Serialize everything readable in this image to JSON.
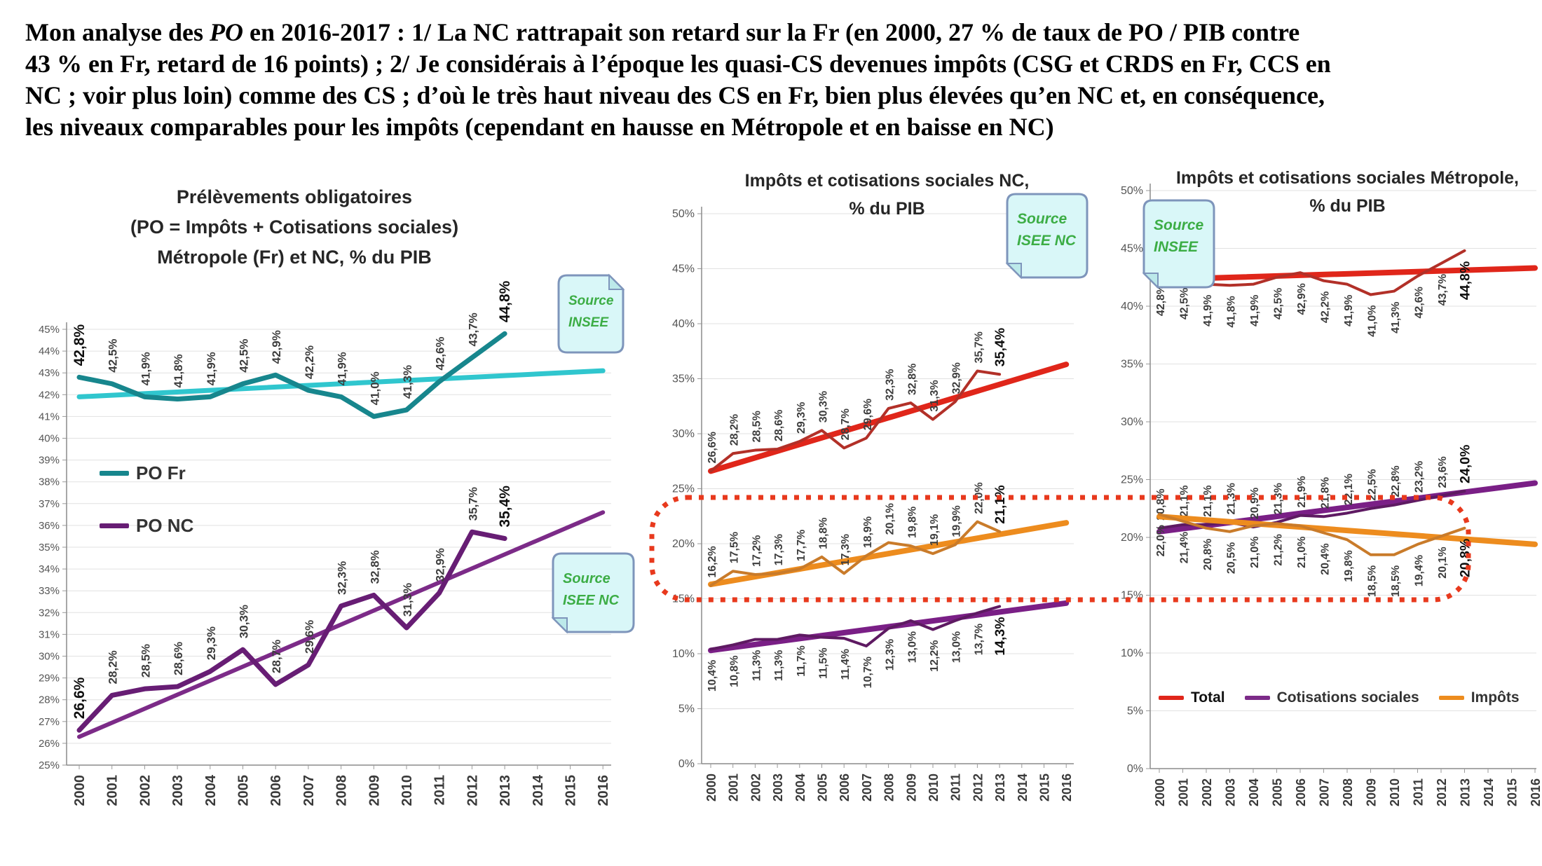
{
  "header": {
    "lines": [
      [
        {
          "t": "Mon analyse des "
        },
        {
          "t": "PO",
          "italic": true
        },
        {
          "t": " en 2016-2017 : 1/ La NC rattrapait son retard sur la Fr (en 2000, 27 % de taux de PO / PIB contre"
        }
      ],
      [
        {
          "t": "43 % en Fr, retard de 16 points) ; 2/ Je considérais à l’époque les quasi-CS devenues impôts (CSG et CRDS en Fr, CCS en"
        }
      ],
      [
        {
          "t": "NC ; voir plus loin) comme des CS ; d’où le très haut niveau des CS en Fr, bien plus élevées qu’en NC et, en conséquence,"
        }
      ],
      [
        {
          "t": "les niveaux comparables pour les impôts (cependant en hausse en Métropole et en baisse en NC)"
        }
      ]
    ]
  },
  "x_axis_years": [
    "2000",
    "2001",
    "2002",
    "2003",
    "2004",
    "2005",
    "2006",
    "2007",
    "2008",
    "2009",
    "2010",
    "2011",
    "2012",
    "2013",
    "2014",
    "2015",
    "2016"
  ],
  "chart_data": [
    {
      "id": "po-fr-nc",
      "type": "line",
      "title": [
        "Prélèvements obligatoires",
        "(PO = Impôts + Cotisations sociales)",
        "Métropole (Fr) et NC, % du PIB"
      ],
      "x": [
        2000,
        2001,
        2002,
        2003,
        2004,
        2005,
        2006,
        2007,
        2008,
        2009,
        2010,
        2011,
        2012,
        2013
      ],
      "ylim": [
        25,
        45
      ],
      "ytick_step": 1,
      "grid": true,
      "series": [
        {
          "name": "PO Fr",
          "slug": "po-fr",
          "color": "#17868D",
          "width": 7,
          "values": [
            42.8,
            42.5,
            41.9,
            41.8,
            41.9,
            42.5,
            42.9,
            42.2,
            41.9,
            41.0,
            41.3,
            42.6,
            43.7,
            44.8
          ],
          "trend": {
            "color": "#30C6CE",
            "width": 7,
            "start": 41.9,
            "end": 43.1
          },
          "label_side": "above",
          "bold_points": [
            0,
            13
          ]
        },
        {
          "name": "PO NC",
          "slug": "po-nc",
          "color": "#671D74",
          "width": 7,
          "values": [
            26.6,
            28.2,
            28.5,
            28.6,
            29.3,
            30.3,
            28.7,
            29.6,
            32.3,
            32.8,
            31.3,
            32.9,
            35.7,
            35.4
          ],
          "trend": {
            "color": "#7C2B88",
            "width": 6,
            "start": 26.3,
            "end": 36.6
          },
          "label_side": "above",
          "bold_points": [
            0,
            13
          ]
        }
      ],
      "legend": {
        "position": "inside-left",
        "items": [
          {
            "label": "PO Fr",
            "color": "#17868D"
          },
          {
            "label": "PO NC",
            "color": "#671D74"
          }
        ]
      },
      "sources": [
        [
          "Source",
          "INSEE"
        ],
        [
          "Source",
          "ISEE NC"
        ]
      ]
    },
    {
      "id": "ics-nc",
      "type": "line",
      "title": [
        "Impôts et cotisations sociales NC,",
        "% du PIB"
      ],
      "x": [
        2000,
        2001,
        2002,
        2003,
        2004,
        2005,
        2006,
        2007,
        2008,
        2009,
        2010,
        2011,
        2012,
        2013
      ],
      "ylim": [
        0,
        50
      ],
      "ytick_step": 5,
      "grid": true,
      "series": [
        {
          "name": "Total",
          "slug": "total-nc",
          "color": "#B23028",
          "width": 4,
          "values": [
            26.6,
            28.2,
            28.5,
            28.6,
            29.3,
            30.3,
            28.7,
            29.6,
            32.3,
            32.8,
            31.3,
            32.9,
            35.7,
            35.4
          ],
          "trend": {
            "color": "#E0261A",
            "width": 8,
            "start": 26.6,
            "end": 36.3
          },
          "label_side": "above",
          "bold_points": [
            13
          ]
        },
        {
          "name": "Impôts",
          "slug": "impots-nc",
          "color": "#C97B2A",
          "width": 4,
          "values": [
            16.2,
            17.5,
            17.2,
            17.3,
            17.7,
            18.8,
            17.3,
            18.9,
            20.1,
            19.8,
            19.1,
            19.9,
            22.0,
            21.1
          ],
          "trend": {
            "color": "#ED8C1E",
            "width": 8,
            "start": 16.3,
            "end": 21.9
          },
          "label_side": "above",
          "bold_points": [
            13
          ]
        },
        {
          "name": "Cotisations sociales",
          "slug": "cs-nc",
          "color": "#5E1A62",
          "width": 4,
          "values": [
            10.4,
            10.8,
            11.3,
            11.3,
            11.7,
            11.5,
            11.4,
            10.7,
            12.3,
            13.0,
            12.2,
            13.0,
            13.7,
            14.3
          ],
          "trend": {
            "color": "#7A1F86",
            "width": 8,
            "start": 10.3,
            "end": 14.6
          },
          "label_side": "below",
          "bold_points": [
            13
          ]
        }
      ],
      "legend": null,
      "sources": [
        [
          "Source",
          "ISEE NC"
        ]
      ]
    },
    {
      "id": "ics-fr",
      "type": "line",
      "title": [
        "Impôts et cotisations sociales Métropole,",
        "% du PIB"
      ],
      "x": [
        2000,
        2001,
        2002,
        2003,
        2004,
        2005,
        2006,
        2007,
        2008,
        2009,
        2010,
        2011,
        2012,
        2013
      ],
      "ylim": [
        0,
        50
      ],
      "ytick_step": 5,
      "grid": true,
      "series": [
        {
          "name": "Total",
          "slug": "total-fr",
          "color": "#B23028",
          "width": 4,
          "values": [
            42.8,
            42.5,
            41.9,
            41.8,
            41.9,
            42.5,
            42.9,
            42.2,
            41.9,
            41.0,
            41.3,
            42.6,
            43.7,
            44.8
          ],
          "trend": {
            "color": "#E0261A",
            "width": 8,
            "start": 42.3,
            "end": 43.3
          },
          "label_side": "below",
          "bold_points": [
            13
          ]
        },
        {
          "name": "Cotisations sociales",
          "slug": "cs-fr",
          "color": "#5E1A62",
          "width": 4,
          "values": [
            20.8,
            21.1,
            21.1,
            21.3,
            20.9,
            21.3,
            21.9,
            21.8,
            22.1,
            22.5,
            22.8,
            23.2,
            23.6,
            24.0
          ],
          "trend": {
            "color": "#7A1F86",
            "width": 8,
            "start": 20.5,
            "end": 24.7
          },
          "label_side": "above",
          "bold_points": [
            13
          ]
        },
        {
          "name": "Impôts",
          "slug": "impots-fr",
          "color": "#C97B2A",
          "width": 4,
          "values": [
            22.0,
            21.4,
            20.8,
            20.5,
            21.0,
            21.2,
            21.0,
            20.4,
            19.8,
            18.5,
            18.5,
            19.4,
            20.1,
            20.8
          ],
          "trend": {
            "color": "#ED8C1E",
            "width": 8,
            "start": 21.8,
            "end": 19.4
          },
          "label_side": "below",
          "bold_points": [
            13
          ]
        }
      ],
      "legend": {
        "position": "bottom",
        "items": [
          {
            "label": "Total",
            "color": "#E0261A",
            "bold": true
          },
          {
            "label": "Cotisations sociales",
            "color": "#7C2B88"
          },
          {
            "label": "Impôts",
            "color": "#ED8C1E"
          }
        ]
      },
      "sources": [
        [
          "Source",
          "INSEE"
        ]
      ]
    }
  ],
  "highlight": {
    "color": "#E8391D",
    "meaning": "emphasis on comparable impôts levels NC vs Métropole"
  },
  "source_box_style": {
    "fill": "#D9F7F8",
    "fold_fill": "#BCE9EA",
    "border": "#7E95BB",
    "text_color": "#3CAD45"
  }
}
